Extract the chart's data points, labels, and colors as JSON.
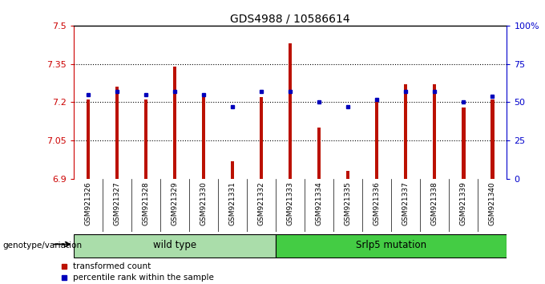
{
  "title": "GDS4988 / 10586614",
  "samples": [
    "GSM921326",
    "GSM921327",
    "GSM921328",
    "GSM921329",
    "GSM921330",
    "GSM921331",
    "GSM921332",
    "GSM921333",
    "GSM921334",
    "GSM921335",
    "GSM921336",
    "GSM921337",
    "GSM921338",
    "GSM921339",
    "GSM921340"
  ],
  "red_values": [
    7.21,
    7.26,
    7.21,
    7.34,
    7.22,
    6.97,
    7.22,
    7.43,
    7.1,
    6.93,
    7.21,
    7.27,
    7.27,
    7.18,
    7.21
  ],
  "blue_percentiles": [
    55,
    57,
    55,
    57,
    55,
    47,
    57,
    57,
    50,
    47,
    52,
    57,
    57,
    50,
    54
  ],
  "y_min": 6.9,
  "y_max": 7.5,
  "y_ticks_left": [
    6.9,
    7.05,
    7.2,
    7.35,
    7.5
  ],
  "y_ticks_right_vals": [
    0,
    25,
    50,
    75,
    100
  ],
  "y_ticks_right_labels": [
    "0",
    "25",
    "50",
    "75",
    "100%"
  ],
  "groups": [
    {
      "label": "wild type",
      "start": 0,
      "end": 7,
      "color": "#AADDAA"
    },
    {
      "label": "Srlp5 mutation",
      "start": 7,
      "end": 15,
      "color": "#44CC44"
    }
  ],
  "bar_color": "#BB1100",
  "dot_color": "#0000BB",
  "bg_color": "#C0C0C0",
  "plot_bg": "#FFFFFF",
  "left_axis_color": "#CC0000",
  "right_axis_color": "#0000CC",
  "genotype_label": "genotype/variation",
  "legend_items": [
    {
      "color": "#BB1100",
      "label": "transformed count"
    },
    {
      "color": "#0000BB",
      "label": "percentile rank within the sample"
    }
  ]
}
